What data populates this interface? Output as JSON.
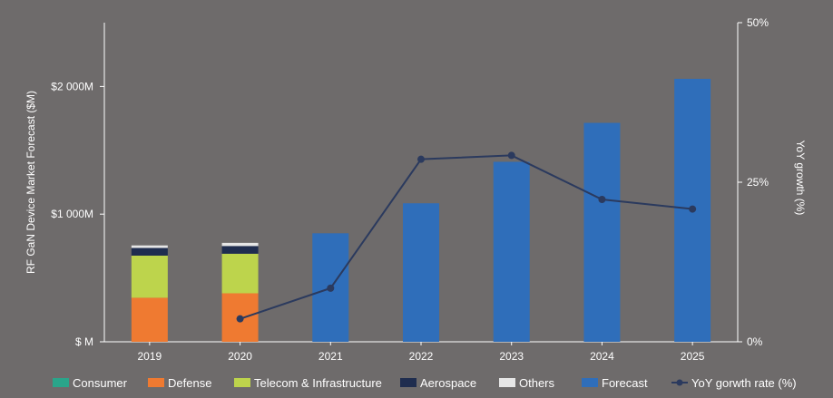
{
  "chart_data": {
    "type": "bar",
    "categories": [
      "2019",
      "2020",
      "2021",
      "2022",
      "2023",
      "2024",
      "2025"
    ],
    "ylabel": "RF GaN Device Market Forecast ($M)",
    "y2label": "YoY growth (%)",
    "ylim": [
      0,
      2500
    ],
    "y2lim": [
      0,
      50
    ],
    "y_ticks": [
      {
        "value": 0,
        "label": "$ M"
      },
      {
        "value": 1000,
        "label": "$1 000M"
      },
      {
        "value": 2000,
        "label": "$2 000M"
      }
    ],
    "y2_ticks": [
      {
        "value": 0,
        "label": "0%"
      },
      {
        "value": 25,
        "label": "25%"
      },
      {
        "value": 50,
        "label": "50%"
      }
    ],
    "stacked_series": [
      {
        "name": "Consumer",
        "color": "#2aa58a",
        "values": [
          0,
          0,
          null,
          null,
          null,
          null,
          null
        ]
      },
      {
        "name": "Defense",
        "color": "#ef7a31",
        "values": [
          345,
          380,
          null,
          null,
          null,
          null,
          null
        ]
      },
      {
        "name": "Telecom & Infrastructure",
        "color": "#bdd44c",
        "values": [
          330,
          310,
          null,
          null,
          null,
          null,
          null
        ]
      },
      {
        "name": "Aerospace",
        "color": "#1f2d4f",
        "values": [
          60,
          60,
          null,
          null,
          null,
          null,
          null
        ]
      },
      {
        "name": "Others",
        "color": "#e6e6e6",
        "values": [
          20,
          25,
          null,
          null,
          null,
          null,
          null
        ]
      }
    ],
    "forecast_series": {
      "name": "Forecast",
      "color": "#2f6eba",
      "values": [
        null,
        null,
        850,
        1085,
        1410,
        1715,
        2060
      ]
    },
    "line_series": {
      "name": "YoY gorwth rate (%)",
      "color": "#2b3a5e",
      "values": [
        null,
        3.6,
        8.4,
        28.6,
        29.2,
        22.3,
        20.8
      ]
    },
    "legend": {
      "position": "bottom",
      "items": [
        {
          "label": "Consumer",
          "color": "#2aa58a",
          "kind": "box"
        },
        {
          "label": "Defense",
          "color": "#ef7a31",
          "kind": "box"
        },
        {
          "label": "Telecom & Infrastructure",
          "color": "#bdd44c",
          "kind": "box"
        },
        {
          "label": "Aerospace",
          "color": "#1f2d4f",
          "kind": "box"
        },
        {
          "label": "Others",
          "color": "#e6e6e6",
          "kind": "box"
        },
        {
          "label": "Forecast",
          "color": "#2f6eba",
          "kind": "box"
        },
        {
          "label": "YoY gorwth rate (%)",
          "color": "#2b3a5e",
          "kind": "line"
        }
      ]
    },
    "grid": false
  },
  "colors": {
    "background": "#6e6b6b",
    "axis": "#ffffff"
  }
}
